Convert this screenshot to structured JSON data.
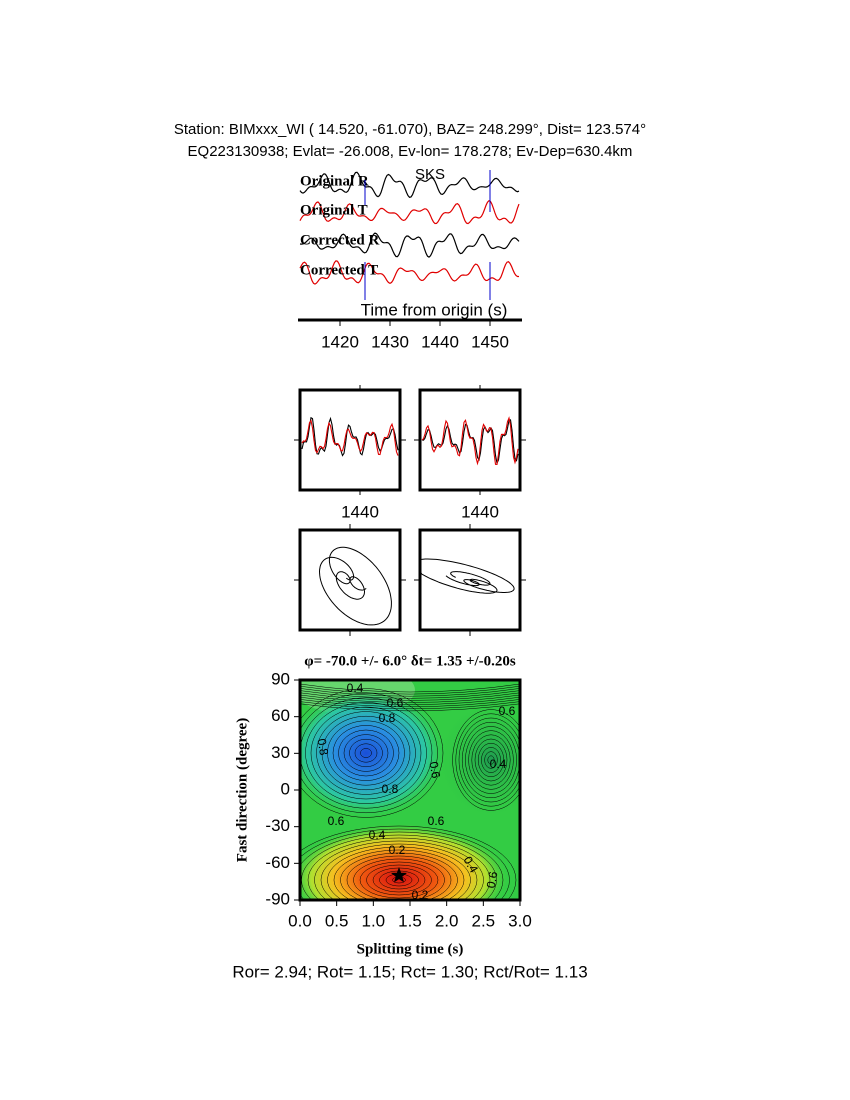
{
  "header": {
    "line1": "Station: BIMxxx_WI (  14.520,  -61.070), BAZ=  248.299°, Dist=  123.574°",
    "line2": "EQ223130938; Evlat= -26.008, Ev-lon= 178.278; Ev-Dep=630.4km"
  },
  "chart_data": [
    {
      "type": "line",
      "xlabel": "Time from origin (s)",
      "xlim": [
        1412,
        1456
      ],
      "xticks": [
        1420,
        1430,
        1440,
        1450
      ],
      "phase": {
        "label": "SKS",
        "color": "#e00000"
      },
      "markers": [
        1425,
        1450
      ],
      "marker_color": "#0000cc",
      "traces": [
        {
          "name": "Original R",
          "color": "#000000"
        },
        {
          "name": "Original T",
          "color": "#e00000"
        },
        {
          "name": "Corrected R",
          "color": "#000000"
        },
        {
          "name": "Corrected T",
          "color": "#e00000"
        }
      ]
    },
    {
      "type": "line",
      "xlim": [
        1428,
        1448
      ],
      "xticks": [
        1440
      ],
      "colors": [
        "#000000",
        "#e00000"
      ]
    },
    {
      "type": "line",
      "xlim": [
        1428,
        1448
      ],
      "xticks": [
        1440
      ],
      "colors": [
        "#000000",
        "#e00000"
      ]
    },
    {
      "type": "particle"
    },
    {
      "type": "particle"
    },
    {
      "type": "contour",
      "title": "φ= -70.0 +/- 6.0° δt= 1.35 +/-0.20s",
      "xlabel": "Splitting time (s)",
      "ylabel": "Fast direction (degree)",
      "xlim": [
        0,
        3
      ],
      "ylim": [
        -90,
        90
      ],
      "xticks": [
        {
          "value": 0,
          "label": "0.0"
        },
        0.5,
        {
          "value": 1,
          "label": "1.0"
        },
        1.5,
        {
          "value": 2,
          "label": "2.0"
        },
        2.5,
        {
          "value": 3,
          "label": "3.0"
        }
      ],
      "yticks": [
        -90,
        -60,
        -30,
        0,
        30,
        60,
        90
      ],
      "best": {
        "x": 1.35,
        "y": -70
      },
      "contour_labels": [
        0.4,
        0.6,
        0.8,
        0.6,
        0.8,
        0.6,
        0.4,
        0.8,
        0.6,
        0.6,
        0.4,
        0.2,
        0.4,
        0.6,
        0.2
      ]
    }
  ],
  "footer": "Ror= 2.94; Rot= 1.15; Rct= 1.30; Rct/Rot= 1.13"
}
